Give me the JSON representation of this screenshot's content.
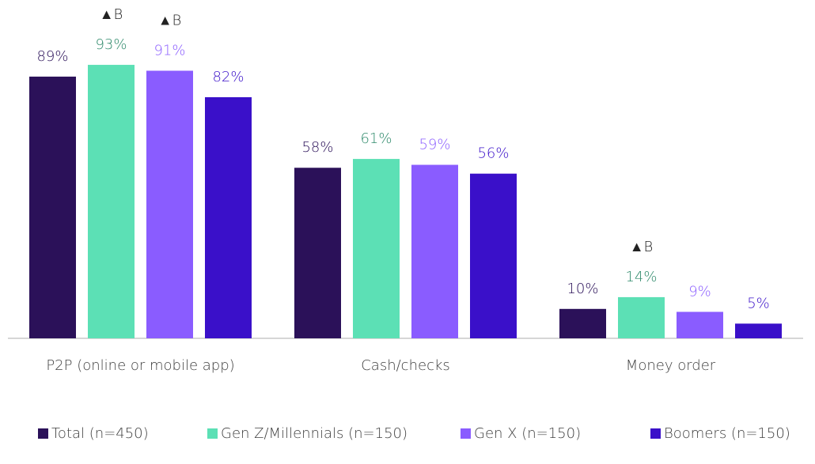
{
  "chart_data": {
    "type": "bar",
    "categories": [
      "P2P (online or mobile app)",
      "Cash/checks",
      "Money order"
    ],
    "series": [
      {
        "name": "Total (n=450)",
        "color": "#2b1159",
        "label_color": "#2b1159",
        "values": [
          89,
          58,
          10
        ],
        "value_labels": [
          "89%",
          "58%",
          "10%"
        ]
      },
      {
        "name": "Gen Z/Millennials (n=150)",
        "color": "#5ce0b5",
        "label_color": "#2f8a6b",
        "values": [
          93,
          61,
          14
        ],
        "value_labels": [
          "93%",
          "61%",
          "14%"
        ],
        "annotations": [
          "▲B",
          null,
          "▲B"
        ]
      },
      {
        "name": "Gen X (n=150)",
        "color": "#8a5cff",
        "label_color": "#8a5cff",
        "values": [
          91,
          59,
          9
        ],
        "value_labels": [
          "91%",
          "59%",
          "9%"
        ],
        "annotations": [
          "▲B",
          null,
          null
        ]
      },
      {
        "name": "Boomers (n=150)",
        "color": "#3a10c9",
        "label_color": "#3a10c9",
        "values": [
          82,
          56,
          5
        ],
        "value_labels": [
          "82%",
          "56%",
          "5%"
        ]
      }
    ],
    "ylim": [
      0,
      100
    ]
  }
}
